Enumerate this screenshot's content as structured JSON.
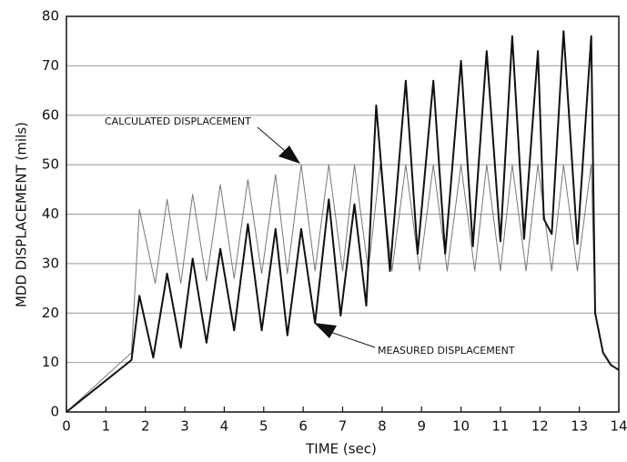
{
  "chart_data": {
    "type": "line",
    "xlabel": "TIME (sec)",
    "ylabel": "MDD DISPLACEMENT (mils)",
    "xlim": [
      0,
      14
    ],
    "ylim": [
      0,
      80
    ],
    "xticks": [
      0,
      1,
      2,
      3,
      4,
      5,
      6,
      7,
      8,
      9,
      10,
      11,
      12,
      13,
      14
    ],
    "yticks": [
      0,
      10,
      20,
      30,
      40,
      50,
      60,
      70,
      80
    ],
    "grid": true,
    "series": [
      {
        "name": "CALCULATED DISPLACEMENT",
        "color": "#777777",
        "x": [
          0,
          1.65,
          1.85,
          2.25,
          2.55,
          2.9,
          3.2,
          3.55,
          3.9,
          4.25,
          4.6,
          4.95,
          5.3,
          5.6,
          5.95,
          6.3,
          6.65,
          7.0,
          7.3,
          7.65,
          7.95,
          8.25,
          8.6,
          8.95,
          9.3,
          9.65,
          10.0,
          10.35,
          10.65,
          11.0,
          11.3,
          11.65,
          11.95,
          12.3,
          12.6,
          12.95,
          13.3,
          13.4,
          13.6,
          13.8,
          14
        ],
        "values": [
          0,
          12,
          41,
          26,
          43,
          26,
          44,
          26.5,
          46,
          27,
          47,
          28,
          48,
          28,
          50,
          28.5,
          50,
          28.5,
          50,
          28.5,
          50,
          28.5,
          50,
          28.5,
          50,
          28.5,
          50,
          28.5,
          50,
          28.5,
          50,
          28.5,
          50,
          28.5,
          50,
          28.5,
          50,
          20,
          12,
          9.5,
          8.5
        ]
      },
      {
        "name": "MEASURED DISPLACEMENT",
        "color": "#111111",
        "x": [
          0,
          1.65,
          1.85,
          2.2,
          2.55,
          2.9,
          3.2,
          3.55,
          3.9,
          4.25,
          4.6,
          4.95,
          5.3,
          5.6,
          5.95,
          6.3,
          6.65,
          6.95,
          7.3,
          7.6,
          7.85,
          8.2,
          8.6,
          8.9,
          9.3,
          9.6,
          10.0,
          10.3,
          10.65,
          11.0,
          11.3,
          11.6,
          11.95,
          12.1,
          12.3,
          12.6,
          12.95,
          13.3,
          13.4,
          13.6,
          13.8,
          14
        ],
        "values": [
          0,
          10.5,
          23.5,
          11,
          28,
          13,
          31,
          14,
          33,
          16.5,
          38,
          16.5,
          37,
          15.5,
          37,
          18,
          43,
          19.5,
          42,
          21.5,
          62,
          28.5,
          67,
          32,
          67,
          32,
          71,
          33.5,
          73,
          34.5,
          76,
          35,
          73,
          39,
          36,
          77,
          34,
          76,
          20,
          12,
          9.5,
          8.5
        ]
      }
    ]
  }
}
